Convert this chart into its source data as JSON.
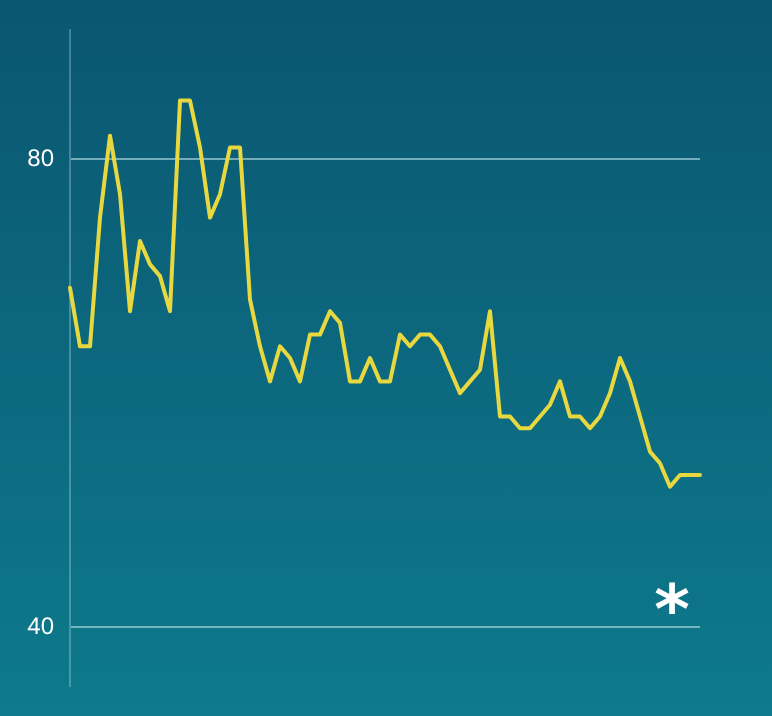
{
  "chart_data": {
    "type": "line",
    "categories": [
      null,
      null,
      null,
      null,
      null,
      null,
      null,
      null,
      null,
      null,
      null,
      null,
      null,
      null,
      null,
      null,
      null,
      null,
      null,
      null,
      null,
      null,
      null,
      null,
      null,
      null,
      null,
      null,
      null,
      null,
      null,
      null,
      null,
      null,
      null,
      null,
      null,
      null,
      null,
      null,
      null,
      null,
      null,
      null,
      null,
      null,
      null,
      null,
      null,
      null,
      null,
      null,
      null,
      null,
      null,
      null,
      null,
      null,
      null,
      null,
      null,
      null,
      null,
      null
    ],
    "series": [
      {
        "values": [
          69,
          64,
          64,
          75,
          82,
          77,
          67,
          73,
          71,
          70,
          67,
          85,
          85,
          81,
          75,
          77,
          81,
          81,
          68,
          64,
          61,
          64,
          63,
          61,
          65,
          65,
          67,
          66,
          61,
          61,
          63,
          61,
          61,
          65,
          64,
          65,
          65,
          64,
          62,
          60,
          61,
          62,
          67,
          58,
          58,
          57,
          57,
          58,
          59,
          61,
          58,
          58,
          57,
          58,
          60,
          63,
          61,
          58,
          55,
          54,
          52,
          53,
          53,
          53
        ],
        "color": "#e8d840"
      }
    ],
    "ylim": [
      35,
      91
    ],
    "yticks": [
      40,
      80
    ],
    "grid": "y",
    "tick_labels": "y",
    "marker": "none",
    "annotations": [
      "*"
    ]
  }
}
